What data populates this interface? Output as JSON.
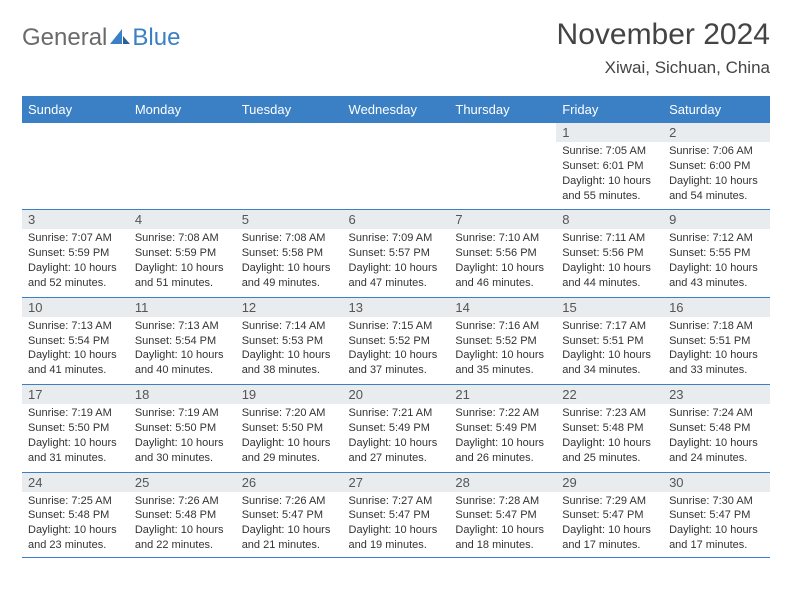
{
  "logo": {
    "text1": "General",
    "text2": "Blue"
  },
  "title": "November 2024",
  "location": "Xiwai, Sichuan, China",
  "header_color": "#3b7fc4",
  "daynum_bg": "#e9ecef",
  "border_color": "#3b7fc4",
  "days": [
    "Sunday",
    "Monday",
    "Tuesday",
    "Wednesday",
    "Thursday",
    "Friday",
    "Saturday"
  ],
  "weeks": [
    [
      null,
      null,
      null,
      null,
      null,
      {
        "n": "1",
        "sr": "7:05 AM",
        "ss": "6:01 PM",
        "dl": "10 hours and 55 minutes."
      },
      {
        "n": "2",
        "sr": "7:06 AM",
        "ss": "6:00 PM",
        "dl": "10 hours and 54 minutes."
      }
    ],
    [
      {
        "n": "3",
        "sr": "7:07 AM",
        "ss": "5:59 PM",
        "dl": "10 hours and 52 minutes."
      },
      {
        "n": "4",
        "sr": "7:08 AM",
        "ss": "5:59 PM",
        "dl": "10 hours and 51 minutes."
      },
      {
        "n": "5",
        "sr": "7:08 AM",
        "ss": "5:58 PM",
        "dl": "10 hours and 49 minutes."
      },
      {
        "n": "6",
        "sr": "7:09 AM",
        "ss": "5:57 PM",
        "dl": "10 hours and 47 minutes."
      },
      {
        "n": "7",
        "sr": "7:10 AM",
        "ss": "5:56 PM",
        "dl": "10 hours and 46 minutes."
      },
      {
        "n": "8",
        "sr": "7:11 AM",
        "ss": "5:56 PM",
        "dl": "10 hours and 44 minutes."
      },
      {
        "n": "9",
        "sr": "7:12 AM",
        "ss": "5:55 PM",
        "dl": "10 hours and 43 minutes."
      }
    ],
    [
      {
        "n": "10",
        "sr": "7:13 AM",
        "ss": "5:54 PM",
        "dl": "10 hours and 41 minutes."
      },
      {
        "n": "11",
        "sr": "7:13 AM",
        "ss": "5:54 PM",
        "dl": "10 hours and 40 minutes."
      },
      {
        "n": "12",
        "sr": "7:14 AM",
        "ss": "5:53 PM",
        "dl": "10 hours and 38 minutes."
      },
      {
        "n": "13",
        "sr": "7:15 AM",
        "ss": "5:52 PM",
        "dl": "10 hours and 37 minutes."
      },
      {
        "n": "14",
        "sr": "7:16 AM",
        "ss": "5:52 PM",
        "dl": "10 hours and 35 minutes."
      },
      {
        "n": "15",
        "sr": "7:17 AM",
        "ss": "5:51 PM",
        "dl": "10 hours and 34 minutes."
      },
      {
        "n": "16",
        "sr": "7:18 AM",
        "ss": "5:51 PM",
        "dl": "10 hours and 33 minutes."
      }
    ],
    [
      {
        "n": "17",
        "sr": "7:19 AM",
        "ss": "5:50 PM",
        "dl": "10 hours and 31 minutes."
      },
      {
        "n": "18",
        "sr": "7:19 AM",
        "ss": "5:50 PM",
        "dl": "10 hours and 30 minutes."
      },
      {
        "n": "19",
        "sr": "7:20 AM",
        "ss": "5:50 PM",
        "dl": "10 hours and 29 minutes."
      },
      {
        "n": "20",
        "sr": "7:21 AM",
        "ss": "5:49 PM",
        "dl": "10 hours and 27 minutes."
      },
      {
        "n": "21",
        "sr": "7:22 AM",
        "ss": "5:49 PM",
        "dl": "10 hours and 26 minutes."
      },
      {
        "n": "22",
        "sr": "7:23 AM",
        "ss": "5:48 PM",
        "dl": "10 hours and 25 minutes."
      },
      {
        "n": "23",
        "sr": "7:24 AM",
        "ss": "5:48 PM",
        "dl": "10 hours and 24 minutes."
      }
    ],
    [
      {
        "n": "24",
        "sr": "7:25 AM",
        "ss": "5:48 PM",
        "dl": "10 hours and 23 minutes."
      },
      {
        "n": "25",
        "sr": "7:26 AM",
        "ss": "5:48 PM",
        "dl": "10 hours and 22 minutes."
      },
      {
        "n": "26",
        "sr": "7:26 AM",
        "ss": "5:47 PM",
        "dl": "10 hours and 21 minutes."
      },
      {
        "n": "27",
        "sr": "7:27 AM",
        "ss": "5:47 PM",
        "dl": "10 hours and 19 minutes."
      },
      {
        "n": "28",
        "sr": "7:28 AM",
        "ss": "5:47 PM",
        "dl": "10 hours and 18 minutes."
      },
      {
        "n": "29",
        "sr": "7:29 AM",
        "ss": "5:47 PM",
        "dl": "10 hours and 17 minutes."
      },
      {
        "n": "30",
        "sr": "7:30 AM",
        "ss": "5:47 PM",
        "dl": "10 hours and 17 minutes."
      }
    ]
  ],
  "labels": {
    "sunrise": "Sunrise: ",
    "sunset": "Sunset: ",
    "daylight": "Daylight: "
  }
}
